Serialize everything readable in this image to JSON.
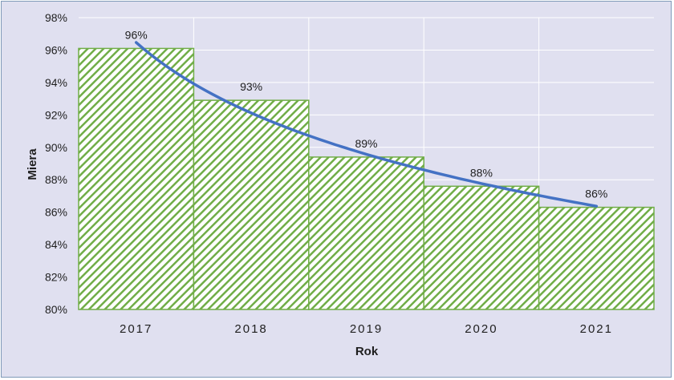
{
  "chart_data": {
    "type": "bar",
    "categories": [
      "2017",
      "2018",
      "2019",
      "2020",
      "2021"
    ],
    "series": [
      {
        "values": [
          96.1,
          92.9,
          89.4,
          87.6,
          86.3
        ]
      }
    ],
    "data_labels": [
      "96%",
      "93%",
      "89%",
      "88%",
      "86%"
    ],
    "trendline": {
      "type": "logarithmic",
      "color": "#4472c4"
    },
    "xlabel": "Rok",
    "ylabel": "Miera",
    "ylim": [
      80,
      98
    ],
    "yticks": [
      80,
      82,
      84,
      86,
      88,
      90,
      92,
      94,
      96,
      98
    ],
    "ytick_labels": [
      "80%",
      "82%",
      "84%",
      "86%",
      "88%",
      "90%",
      "92%",
      "94%",
      "96%",
      "98%"
    ],
    "grid": true,
    "bar_fill": "diagonal-hatch",
    "colors": {
      "bar": "#70ad47",
      "background": "#e0e0f0",
      "grid": "#ffffff"
    }
  }
}
